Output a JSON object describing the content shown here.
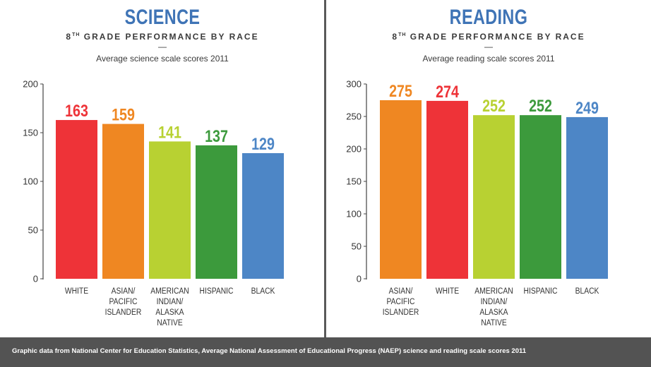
{
  "footer": {
    "text": "Graphic data from National Center for Education Statistics, Average National Assessment of Educational Progress (NAEP) science and reading scale scores 2011"
  },
  "colors": {
    "title": "#3f74b6",
    "red": "#ee3338",
    "orange": "#ef8722",
    "lime": "#b8d132",
    "green": "#3c9a3c",
    "blue": "#4d86c6",
    "footer": "#535353"
  },
  "chart_data": [
    {
      "type": "bar",
      "title": "SCIENCE",
      "subtitle_main": "8",
      "subtitle_sup": "TH",
      "subtitle_rest": " GRADE PERFORMANCE BY RACE",
      "separator": "—",
      "caption": "Average science scale scores 2011",
      "xlabel": "",
      "ylabel": "",
      "ylim": [
        0,
        200
      ],
      "yticks": [
        0,
        50,
        100,
        150,
        200
      ],
      "grid": false,
      "categories": [
        [
          "WHITE"
        ],
        [
          "ASIAN/",
          "PACIFIC",
          "ISLANDER"
        ],
        [
          "AMERICAN",
          "INDIAN/",
          "ALASKA",
          "NATIVE"
        ],
        [
          "HISPANIC"
        ],
        [
          "BLACK"
        ]
      ],
      "values": [
        163,
        159,
        141,
        137,
        129
      ],
      "bar_colors": [
        "#ee3338",
        "#ef8722",
        "#b8d132",
        "#3c9a3c",
        "#4d86c6"
      ]
    },
    {
      "type": "bar",
      "title": "READING",
      "subtitle_main": "8",
      "subtitle_sup": "TH",
      "subtitle_rest": " GRADE PERFORMANCE BY RACE",
      "separator": "—",
      "caption": "Average reading scale scores 2011",
      "xlabel": "",
      "ylabel": "",
      "ylim": [
        0,
        300
      ],
      "yticks": [
        0,
        50,
        100,
        150,
        200,
        250,
        300
      ],
      "grid": false,
      "categories": [
        [
          "ASIAN/",
          "PACIFIC",
          "ISLANDER"
        ],
        [
          "WHITE"
        ],
        [
          "AMERICAN",
          "INDIAN/",
          "ALASKA",
          "NATIVE"
        ],
        [
          "HISPANIC"
        ],
        [
          "BLACK"
        ]
      ],
      "values": [
        275,
        274,
        252,
        252,
        249
      ],
      "bar_colors": [
        "#ef8722",
        "#ee3338",
        "#b8d132",
        "#3c9a3c",
        "#4d86c6"
      ]
    }
  ]
}
